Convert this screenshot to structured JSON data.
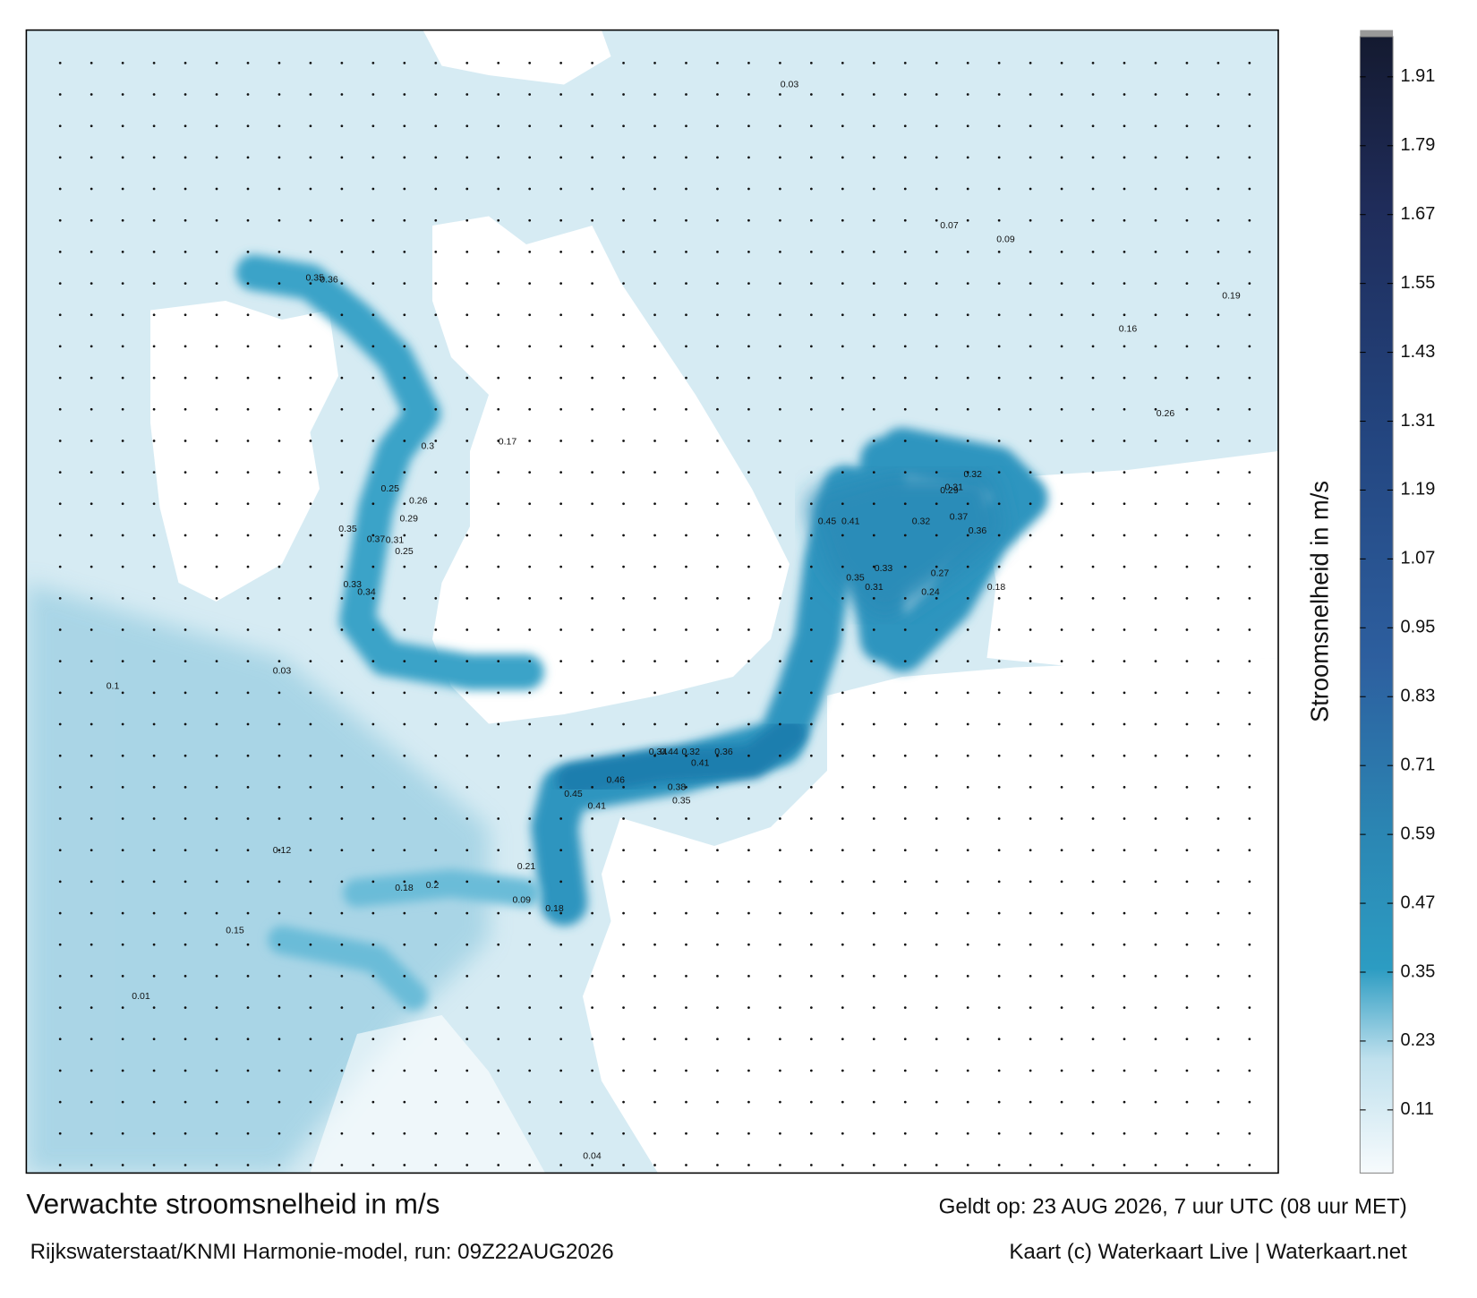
{
  "header": {
    "title": "Verwachte stroomsnelheid in m/s",
    "subtitle": "Rijkswaterstaat/KNMI Harmonie-model, run: 09Z22AUG2026",
    "valid_time": "Geldt op: 23 AUG 2026, 7 uur UTC (08 uur MET)",
    "credit": "Kaart (c) Waterkaart Live | Waterkaart.net"
  },
  "colorbar": {
    "label": "Stroomsnelheid in m/s",
    "clim": [
      0,
      1.98
    ],
    "ticks": [
      0.11,
      0.23,
      0.35,
      0.47,
      0.59,
      0.71,
      0.83,
      0.95,
      1.07,
      1.19,
      1.31,
      1.43,
      1.55,
      1.67,
      1.79,
      1.91
    ]
  },
  "map_labels": [
    0.32,
    0.37,
    0.36,
    0.45,
    0.41,
    0.35,
    0.33,
    0.31,
    0.34,
    0.44,
    0.32,
    0.36,
    0.41,
    0.46,
    0.38,
    0.35,
    0.45,
    0.41,
    0.3,
    0.17,
    0.26,
    0.25,
    0.29,
    0.35,
    0.37,
    0.31,
    0.25,
    0.33,
    0.34,
    0.35,
    0.36,
    0.29,
    0.31,
    0.32,
    0.27,
    0.24,
    0.18,
    0.1,
    0.12,
    0.01,
    0.04,
    0.03,
    0.03,
    0.07,
    0.09,
    0.19,
    0.26,
    0.16,
    0.15,
    0.18,
    0.2,
    0.09,
    0.18,
    0.21
  ]
}
